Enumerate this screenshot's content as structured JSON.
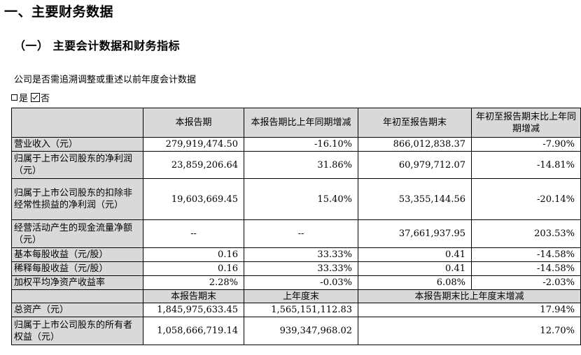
{
  "heading1": "一、主要财务数据",
  "heading2": "（一） 主要会计数据和财务指标",
  "restate_question": "公司是否需追溯调整或重述以前年度会计数据",
  "options": {
    "yes": "是",
    "no": "否",
    "selected": "否"
  },
  "table_header": {
    "period": "本报告期",
    "period_change": "本报告期比上年同期增减",
    "ytd": "年初至报告期末",
    "ytd_change": "年初至报告期末比上年同期增减"
  },
  "rows": [
    {
      "label": "营业收入（元）",
      "period": "279,919,474.50",
      "period_change": "-16.10%",
      "ytd": "866,012,838.37",
      "ytd_change": "-7.90%"
    },
    {
      "label": "归属于上市公司股东的净利润（元）",
      "period": "23,859,206.64",
      "period_change": "31.86%",
      "ytd": "60,979,712.07",
      "ytd_change": "-14.81%"
    },
    {
      "label": "归属于上市公司股东的扣除非经常性损益的净利润（元）",
      "period": "19,603,669.45",
      "period_change": "15.40%",
      "ytd": "53,355,144.56",
      "ytd_change": "-20.14%"
    },
    {
      "label": "经营活动产生的现金流量净额（元）",
      "period": "--",
      "period_change": "--",
      "ytd": "37,661,937.95",
      "ytd_change": "203.53%"
    },
    {
      "label": "基本每股收益（元/股）",
      "period": "0.16",
      "period_change": "33.33%",
      "ytd": "0.41",
      "ytd_change": "-14.58%"
    },
    {
      "label": "稀释每股收益（元/股）",
      "period": "0.16",
      "period_change": "33.33%",
      "ytd": "0.41",
      "ytd_change": "-14.58%"
    },
    {
      "label": "加权平均净资产收益率",
      "period": "2.28%",
      "period_change": "-0.03%",
      "ytd": "6.08%",
      "ytd_change": "-2.03%"
    }
  ],
  "balance_header": {
    "period_end": "本报告期末",
    "last_year_end": "上年度末",
    "change": "本报告期末比上年度末增减"
  },
  "balance_rows": [
    {
      "label": "总资产（元）",
      "period_end": "1,845,975,633.45",
      "last_year_end": "1,565,151,112.83",
      "change": "17.94%"
    },
    {
      "label": "归属于上市公司股东的所有者权益（元）",
      "period_end": "1,058,666,719.14",
      "last_year_end": "939,347,968.02",
      "change": "12.70%"
    }
  ]
}
